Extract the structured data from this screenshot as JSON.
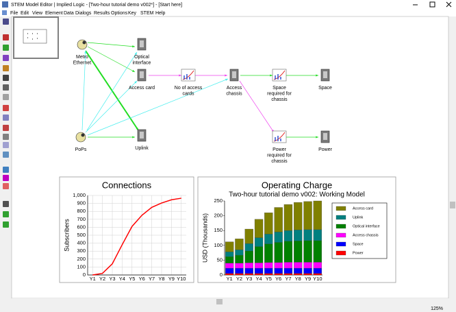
{
  "window": {
    "title": "STEM Model Editor | Implied Logic - [Two-hour tutorial demo v002*] - [Start here]"
  },
  "menu": [
    "File",
    "Edit",
    "View",
    "Element",
    "Data",
    "Dialogs",
    "Results",
    "Options",
    "Key",
    "STEM",
    "Help"
  ],
  "nodes": [
    {
      "label": [
        "Metro",
        "Ethernet"
      ]
    },
    {
      "label": [
        "Optical",
        "interface"
      ]
    },
    {
      "label": [
        "Access card"
      ]
    },
    {
      "label": [
        "No of access",
        "cards"
      ]
    },
    {
      "label": [
        "Access",
        "chassis"
      ]
    },
    {
      "label": [
        "Space",
        "required for",
        "chassis"
      ]
    },
    {
      "label": [
        "Space"
      ]
    },
    {
      "label": [
        "PoPs"
      ]
    },
    {
      "label": [
        "Uplink"
      ]
    },
    {
      "label": [
        "Power",
        "required for",
        "chassis"
      ]
    },
    {
      "label": [
        "Power"
      ]
    }
  ],
  "chart_data": [
    {
      "type": "line",
      "title": "Connections",
      "ylabel": "Subscribers",
      "categories": [
        "Y1",
        "Y2",
        "Y3",
        "Y4",
        "Y5",
        "Y6",
        "Y7",
        "Y8",
        "Y9",
        "Y10"
      ],
      "series": [
        {
          "name": "Connections",
          "color": "#ff0000",
          "values": [
            0,
            20,
            140,
            380,
            610,
            750,
            850,
            905,
            945,
            965
          ]
        }
      ],
      "ylim": [
        0,
        1000
      ],
      "yticks": [
        0,
        100,
        200,
        300,
        400,
        500,
        600,
        700,
        800,
        900,
        {
          "value": 1000,
          "label": "1,000"
        }
      ],
      "grid": true
    },
    {
      "type": "bar",
      "stacked": true,
      "title": "Operating Charge",
      "subtitle": "Two-hour tutorial demo v002: Working Model",
      "ylabel": "USD  (Thousands)",
      "categories": [
        "Y1",
        "Y2",
        "Y3",
        "Y4",
        "Y5",
        "Y6",
        "Y7",
        "Y8",
        "Y9",
        "Y10"
      ],
      "series": [
        {
          "name": "Power",
          "color": "#ff0000",
          "values": [
            5,
            5,
            5,
            5,
            5,
            5,
            5,
            5,
            5,
            5
          ]
        },
        {
          "name": "Space",
          "color": "#0000ff",
          "values": [
            18,
            18,
            18,
            18,
            18,
            18,
            18,
            18,
            18,
            18
          ]
        },
        {
          "name": "Access chassis",
          "color": "#ff00ff",
          "values": [
            17,
            17,
            18,
            18,
            19,
            19,
            20,
            20,
            20,
            20
          ]
        },
        {
          "name": "Optical interface",
          "color": "#008000",
          "values": [
            22,
            27,
            40,
            55,
            63,
            68,
            71,
            72,
            73,
            73
          ]
        },
        {
          "name": "Uplink",
          "color": "#008080",
          "values": [
            16,
            18,
            25,
            30,
            33,
            35,
            36,
            37,
            37,
            37
          ]
        },
        {
          "name": "Access card",
          "color": "#808000",
          "values": [
            34,
            37,
            49,
            62,
            72,
            83,
            88,
            93,
            95,
            97
          ]
        }
      ],
      "ylim": [
        0,
        250
      ],
      "yticks": [
        0,
        50,
        100,
        150,
        200,
        250
      ],
      "grid": false,
      "legend": "right"
    }
  ],
  "status": {
    "zoom": "125%"
  }
}
